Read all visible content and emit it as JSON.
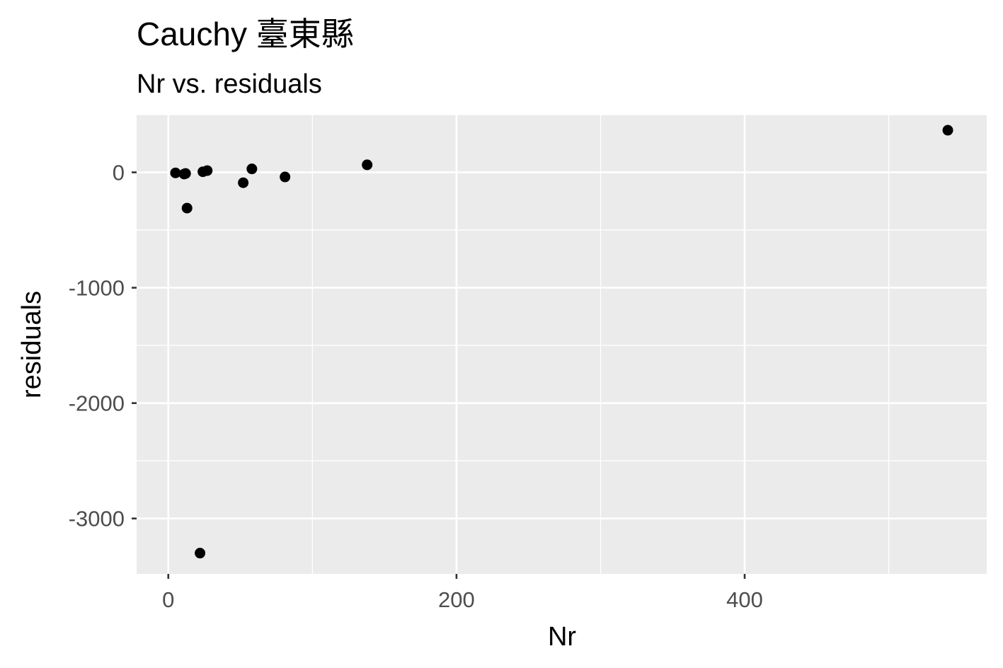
{
  "chart_data": {
    "type": "scatter",
    "title": "Cauchy 臺東縣",
    "subtitle": "Nr vs. residuals",
    "xlabel": "Nr",
    "ylabel": "residuals",
    "xlim": [
      -22,
      568
    ],
    "ylim": [
      -3480,
      500
    ],
    "x_ticks": [
      0,
      200,
      400
    ],
    "x_tick_labels": [
      "0",
      "200",
      "400"
    ],
    "x_minor_ticks": [
      100,
      300,
      500
    ],
    "y_ticks": [
      0,
      -1000,
      -2000,
      -3000
    ],
    "y_tick_labels": [
      "0",
      "-1000",
      "-2000",
      "-3000"
    ],
    "y_minor_ticks": [
      -500,
      -1500,
      -2500,
      500
    ],
    "grid": true,
    "colors": {
      "panel": "#ebebeb",
      "grid": "#ffffff",
      "point": "#000000"
    },
    "points": [
      {
        "x": 5,
        "y": -5
      },
      {
        "x": 11,
        "y": -15
      },
      {
        "x": 12,
        "y": -10
      },
      {
        "x": 13,
        "y": -310
      },
      {
        "x": 22,
        "y": -3300
      },
      {
        "x": 24,
        "y": 5
      },
      {
        "x": 27,
        "y": 15
      },
      {
        "x": 52,
        "y": -90
      },
      {
        "x": 58,
        "y": 30
      },
      {
        "x": 81,
        "y": -40
      },
      {
        "x": 138,
        "y": 65
      },
      {
        "x": 541,
        "y": 365
      }
    ]
  }
}
